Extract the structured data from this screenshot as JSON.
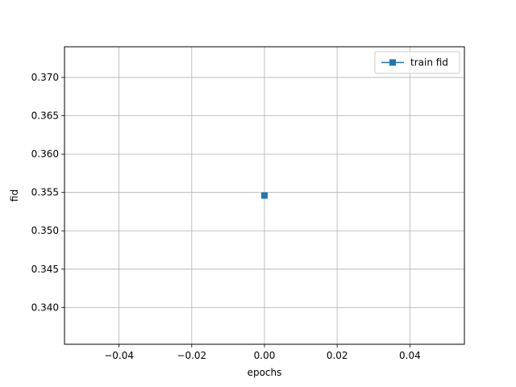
{
  "chart_data": {
    "type": "line",
    "title": "",
    "xlabel": "epochs",
    "ylabel": "fid",
    "xlim": [
      -0.055,
      0.055
    ],
    "ylim": [
      0.3352,
      0.374
    ],
    "xticks": [
      -0.04,
      -0.02,
      0.0,
      0.02,
      0.04
    ],
    "xtick_labels": [
      "−0.04",
      "−0.02",
      "0.00",
      "0.02",
      "0.04"
    ],
    "yticks": [
      0.34,
      0.345,
      0.35,
      0.355,
      0.36,
      0.365,
      0.37
    ],
    "ytick_labels": [
      "0.340",
      "0.345",
      "0.350",
      "0.355",
      "0.360",
      "0.365",
      "0.370"
    ],
    "grid": true,
    "legend_position": "top-right",
    "series": [
      {
        "name": "train fid",
        "color": "#1f77b4",
        "marker": "square",
        "x": [
          0
        ],
        "y": [
          0.3546
        ]
      }
    ]
  }
}
